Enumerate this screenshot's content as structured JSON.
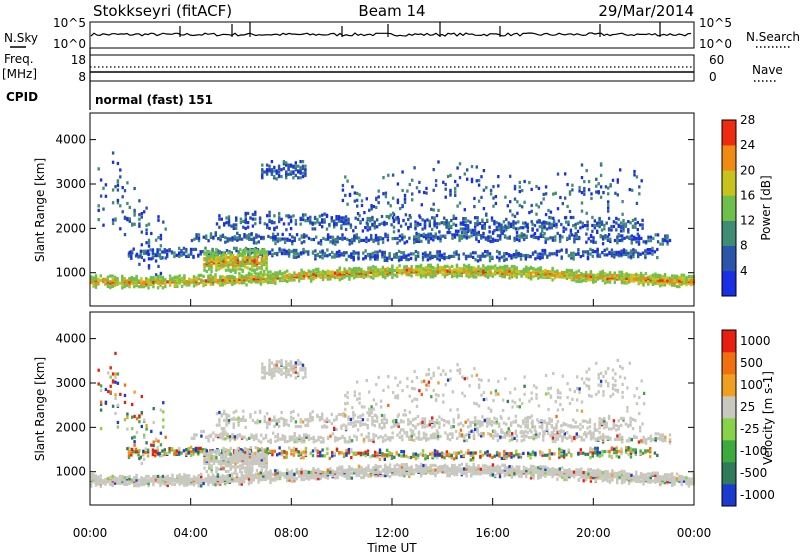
{
  "header": {
    "station": "Stokkseyri (fitACF)",
    "beam": "Beam 14",
    "date": "29/Mar/2014"
  },
  "panels": {
    "nsky_label": "N.Sky",
    "nsky_ticks": [
      "10^5",
      "10^0"
    ],
    "nsearch_label": "N.Search",
    "nsearch_ticks": [
      "10^5",
      "10^0"
    ],
    "freq_label": "Freq.",
    "freq_unit": "[MHz]",
    "freq_ticks": [
      "18",
      "8"
    ],
    "nave_label": "Nave",
    "nave_ticks": [
      "60",
      "0"
    ],
    "cpid_label": "CPID",
    "cpid_value": "normal (fast) 151"
  },
  "chart_data": [
    {
      "type": "heatmap",
      "name": "power",
      "ylabel": "Slant Range [km]",
      "yticks": [
        "1000",
        "2000",
        "3000",
        "4000"
      ],
      "ylim": [
        250,
        4600
      ],
      "colorbar_label": "Power [dB]",
      "colorbar_ticks": [
        "4",
        "8",
        "12",
        "16",
        "20",
        "24",
        "28"
      ],
      "colorbar_colors": [
        "#1a2ee6",
        "#2a55a8",
        "#3f8c75",
        "#6fc04a",
        "#c8c21e",
        "#f08a12",
        "#ee2a10"
      ]
    },
    {
      "type": "heatmap",
      "name": "velocity",
      "ylabel": "Slant Range [km]",
      "yticks": [
        "1000",
        "2000",
        "3000",
        "4000"
      ],
      "ylim": [
        250,
        4600
      ],
      "colorbar_label": "Velocity [m s-1]",
      "colorbar_ticks": [
        "1000",
        "500",
        "100",
        "25",
        "-25",
        "-100",
        "-500",
        "-1000"
      ],
      "colorbar_colors": [
        "#1a3ad0",
        "#2f7a5a",
        "#3daa40",
        "#88d24a",
        "#c8c8c0",
        "#f0a020",
        "#f07010",
        "#e81e10"
      ]
    }
  ],
  "xaxis": {
    "label": "Time UT",
    "ticks": [
      "00:00",
      "04:00",
      "08:00",
      "12:00",
      "16:00",
      "20:00",
      "00:00"
    ]
  }
}
